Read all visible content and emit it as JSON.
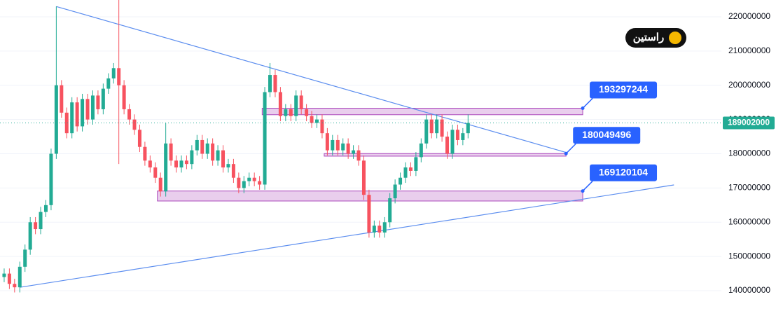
{
  "chart_data": {
    "type": "candlestick",
    "logo": "راستین",
    "up_color": "#22ab94",
    "down_color": "#f7525f",
    "x": [
      0,
      1,
      2,
      3,
      4,
      5,
      6,
      7,
      8,
      9,
      10,
      11,
      12,
      13,
      14,
      15,
      16,
      17,
      18,
      19,
      20,
      21,
      22,
      23,
      24,
      25,
      26,
      27,
      28,
      29,
      30,
      31,
      32,
      33,
      34,
      35,
      36,
      37,
      38,
      39,
      40,
      41,
      42,
      43,
      44,
      45,
      46,
      47,
      48,
      49,
      50,
      51,
      52,
      53,
      54,
      55,
      56,
      57,
      58,
      59,
      60,
      61,
      62,
      63,
      64,
      65,
      66,
      67,
      68,
      69,
      70,
      71,
      72,
      73,
      74,
      75,
      76,
      77,
      78,
      79,
      80,
      81,
      82,
      83,
      84,
      85,
      86,
      87,
      88,
      89
    ],
    "open": [
      144000000,
      145000000,
      142000000,
      141000000,
      147000000,
      152000000,
      160000000,
      158000000,
      163000000,
      165000000,
      180000000,
      200000000,
      192000000,
      186000000,
      195000000,
      188000000,
      196000000,
      190000000,
      197000000,
      193000000,
      199000000,
      202000000,
      205000000,
      200000000,
      193000000,
      190000000,
      187000000,
      182000000,
      178000000,
      176000000,
      173000000,
      169000000,
      183000000,
      178000000,
      176000000,
      178000000,
      177000000,
      181000000,
      184000000,
      180000000,
      183000000,
      178000000,
      181000000,
      176000000,
      177000000,
      173000000,
      170000000,
      172000000,
      173000000,
      172000000,
      171000000,
      198000000,
      203000000,
      198000000,
      191000000,
      193000000,
      191000000,
      197000000,
      193000000,
      191000000,
      189000000,
      190000000,
      186000000,
      181000000,
      184000000,
      181000000,
      183000000,
      180000000,
      181000000,
      178000000,
      168000000,
      157000000,
      159000000,
      157000000,
      160000000,
      167000000,
      171000000,
      173000000,
      176000000,
      175000000,
      179000000,
      183000000,
      190000000,
      186000000,
      190000000,
      185000000,
      180000000,
      187000000,
      184000000,
      186000000
    ],
    "high": [
      146500000,
      146500000,
      143500000,
      148500000,
      153500000,
      161500000,
      161500000,
      164500000,
      166500000,
      181500000,
      223000000,
      201500000,
      193500000,
      196500000,
      196500000,
      197500000,
      197500000,
      198500000,
      198500000,
      200500000,
      203500000,
      206500000,
      225000000,
      201500000,
      194500000,
      191500000,
      188500000,
      183500000,
      179500000,
      177500000,
      174500000,
      189000000,
      184500000,
      179500000,
      179500000,
      179500000,
      182500000,
      185500000,
      185500000,
      184500000,
      184500000,
      182500000,
      182500000,
      178500000,
      178500000,
      174500000,
      173500000,
      174500000,
      174500000,
      173500000,
      199500000,
      206500000,
      204500000,
      199500000,
      194500000,
      194500000,
      198500000,
      198500000,
      194500000,
      192500000,
      191500000,
      191500000,
      187500000,
      185500000,
      185500000,
      184500000,
      184500000,
      182500000,
      182500000,
      179500000,
      169500000,
      160500000,
      160500000,
      161500000,
      168500000,
      172500000,
      174500000,
      177500000,
      177500000,
      180500000,
      184500000,
      191500000,
      191500000,
      191500000,
      191500000,
      186500000,
      188500000,
      188500000,
      187500000,
      191500000
    ],
    "low": [
      142500000,
      140500000,
      139500000,
      139500000,
      145500000,
      150500000,
      156500000,
      156500000,
      161500000,
      163500000,
      178500000,
      190500000,
      184500000,
      184500000,
      186500000,
      186500000,
      188500000,
      188500000,
      191500000,
      191500000,
      197500000,
      200500000,
      177000000,
      191500000,
      188500000,
      185500000,
      180500000,
      176500000,
      174500000,
      171500000,
      167500000,
      167500000,
      176500000,
      174500000,
      174500000,
      175500000,
      175500000,
      179500000,
      178500000,
      178500000,
      176500000,
      176500000,
      174500000,
      174500000,
      171500000,
      168500000,
      168500000,
      170500000,
      170500000,
      169500000,
      169500000,
      196500000,
      196500000,
      189500000,
      189500000,
      189500000,
      189500000,
      191500000,
      189500000,
      187500000,
      187500000,
      184500000,
      179500000,
      179500000,
      179500000,
      179500000,
      178500000,
      178500000,
      176500000,
      166500000,
      155500000,
      155500000,
      155500000,
      155500000,
      158500000,
      165500000,
      169500000,
      171500000,
      173500000,
      173500000,
      177500000,
      181500000,
      184500000,
      184500000,
      183500000,
      178500000,
      178500000,
      182500000,
      182500000,
      184500000
    ],
    "close": [
      145000000,
      142000000,
      141000000,
      147000000,
      152000000,
      160000000,
      158000000,
      163000000,
      165000000,
      180000000,
      200000000,
      192000000,
      186000000,
      195000000,
      188000000,
      196000000,
      190000000,
      197000000,
      193000000,
      199000000,
      202000000,
      205000000,
      200000000,
      193000000,
      190000000,
      187000000,
      182000000,
      178000000,
      176000000,
      173000000,
      169000000,
      183000000,
      178000000,
      176000000,
      178000000,
      177000000,
      181000000,
      184000000,
      180000000,
      183000000,
      178000000,
      181000000,
      176000000,
      177000000,
      173000000,
      170000000,
      172000000,
      173000000,
      172000000,
      171000000,
      198000000,
      203000000,
      198000000,
      191000000,
      193000000,
      191000000,
      197000000,
      193000000,
      191000000,
      189000000,
      190000000,
      186000000,
      181000000,
      184000000,
      181000000,
      183000000,
      180000000,
      181000000,
      178000000,
      168000000,
      157000000,
      159000000,
      157000000,
      160000000,
      167000000,
      171000000,
      173000000,
      176000000,
      175000000,
      179000000,
      183000000,
      190000000,
      186000000,
      190000000,
      185000000,
      180000000,
      187000000,
      184000000,
      186000000,
      189002000
    ],
    "trendlines": [
      {
        "x": [
          10,
          108
        ],
        "y": [
          223000000,
          180300000
        ]
      },
      {
        "x": [
          3,
          128.5
        ],
        "y": [
          141000000,
          170900000
        ]
      }
    ],
    "zones": [
      {
        "x": [
          49.5,
          111
        ],
        "top": 193297244,
        "bottom": 191400000
      },
      {
        "x": [
          61.4,
          107.8
        ],
        "top": 180049496,
        "bottom": 179300000
      },
      {
        "x": [
          29.4,
          111
        ],
        "top": 169120104,
        "bottom": 166200000
      }
    ],
    "xlim": [
      -0.8,
      137.6
    ],
    "ylim": [
      135100000,
      224900000
    ],
    "yticks": [
      140000000,
      150000000,
      160000000,
      170000000,
      180000000,
      190000000,
      200000000,
      210000000,
      220000000
    ],
    "grid": true
  }
}
